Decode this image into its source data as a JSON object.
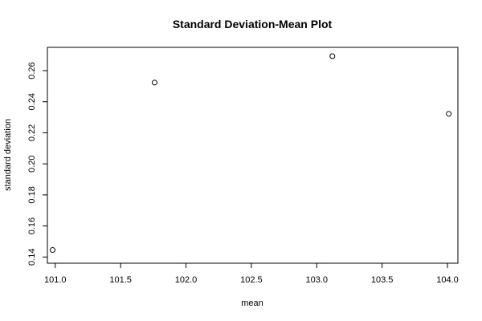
{
  "chart_data": {
    "type": "scatter",
    "title": "Standard Deviation-Mean Plot",
    "xlabel": "mean",
    "ylabel": "standard deviation",
    "xlim": [
      100.94,
      104.08
    ],
    "ylim": [
      0.136,
      0.275
    ],
    "xticks": [
      101.0,
      101.5,
      102.0,
      102.5,
      103.0,
      103.5,
      104.0
    ],
    "xtick_labels": [
      "101.0",
      "101.5",
      "102.0",
      "102.5",
      "103.0",
      "103.5",
      "104.0"
    ],
    "yticks": [
      0.14,
      0.16,
      0.18,
      0.2,
      0.22,
      0.24,
      0.26
    ],
    "ytick_labels": [
      "0.14",
      "0.16",
      "0.18",
      "0.20",
      "0.22",
      "0.24",
      "0.26"
    ],
    "grid": false,
    "points": [
      {
        "x": 100.98,
        "y": 0.1445
      },
      {
        "x": 101.76,
        "y": 0.2523
      },
      {
        "x": 103.12,
        "y": 0.2693
      },
      {
        "x": 104.01,
        "y": 0.2322
      }
    ]
  }
}
